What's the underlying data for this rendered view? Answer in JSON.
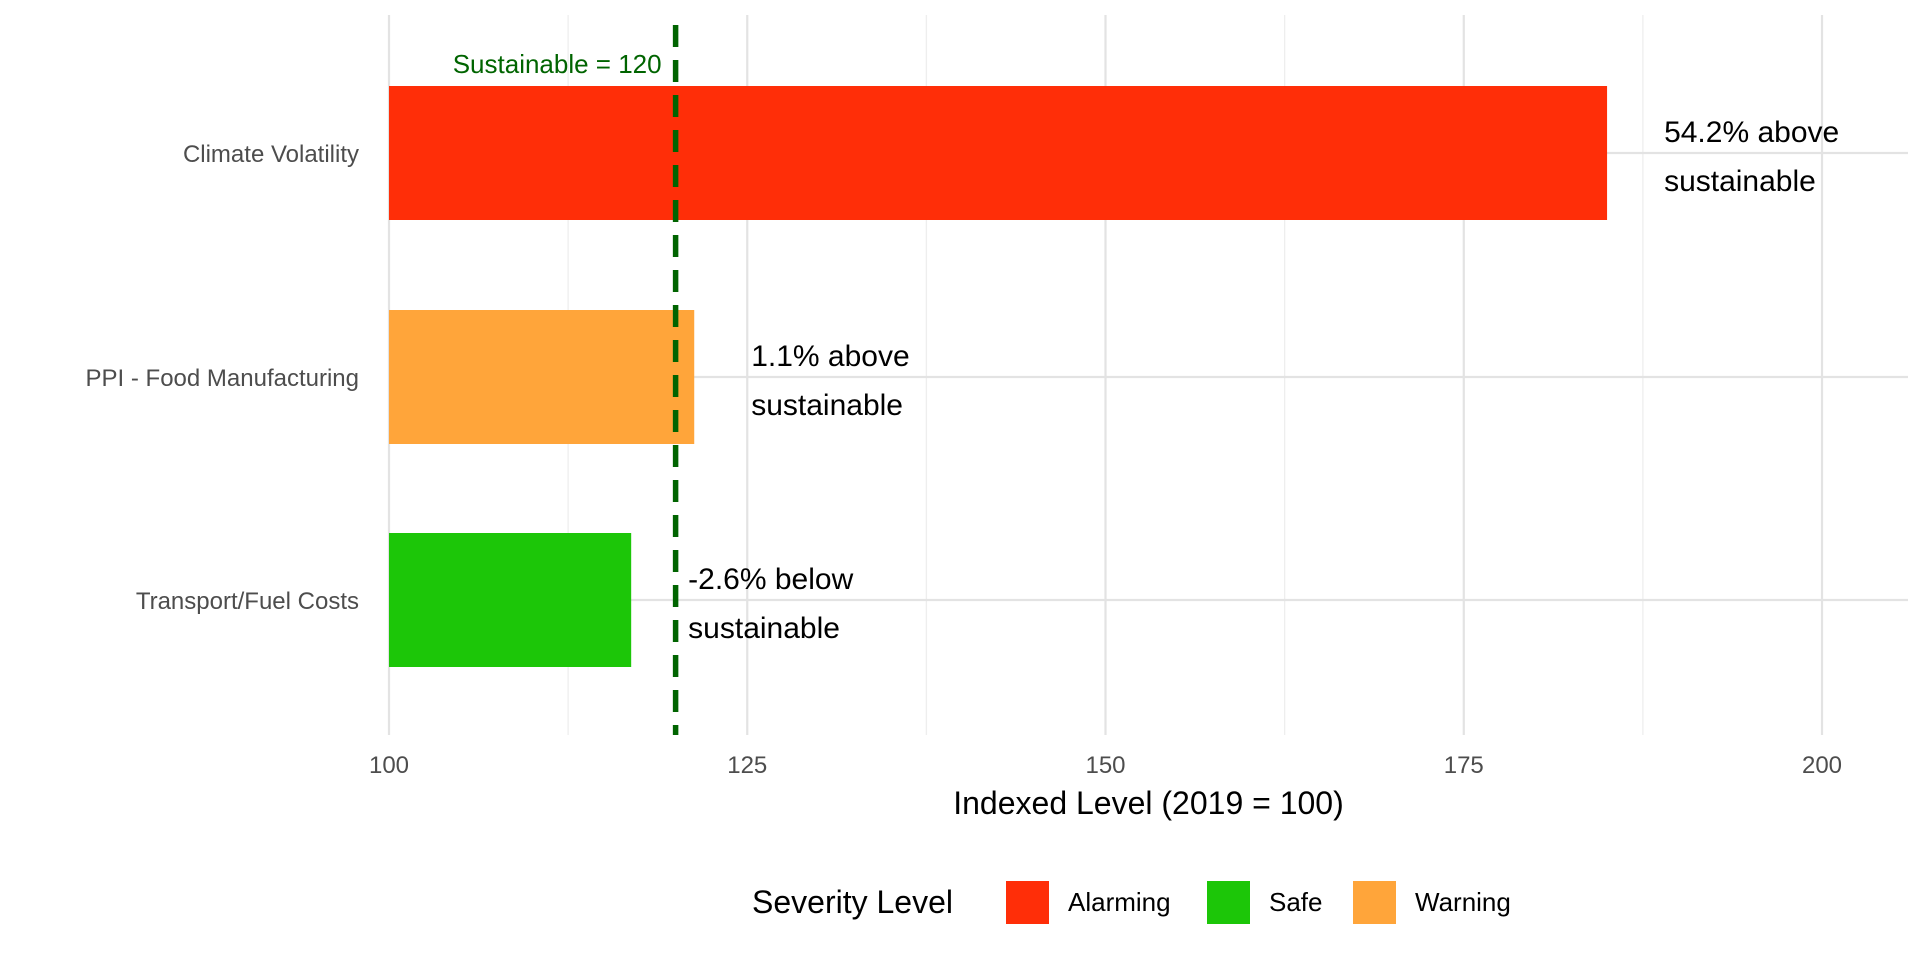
{
  "chart_data": {
    "type": "bar",
    "orientation": "horizontal",
    "categories": [
      "Climate Volatility",
      "PPI - Food Manufacturing",
      "Transport/Fuel Costs"
    ],
    "values": [
      185.0,
      121.3,
      116.9
    ],
    "severity": [
      "Alarming",
      "Warning",
      "Safe"
    ],
    "bar_labels": [
      [
        "54.2% above",
        "sustainable"
      ],
      [
        "1.1% above",
        "sustainable"
      ],
      [
        "-2.6% below",
        "sustainable"
      ]
    ],
    "xlabel": "Indexed Level (2019 = 100)",
    "xlim": [
      100,
      206
    ],
    "xticks": [
      100,
      125,
      150,
      175,
      200
    ],
    "xtick_labels": [
      "100",
      "125",
      "150",
      "175",
      "200"
    ],
    "reference_line": {
      "value": 120,
      "label": "Sustainable = 120",
      "color": "#006400",
      "style": "dashed"
    },
    "grid": true,
    "legend": {
      "title": "Severity Level",
      "placement": "bottom",
      "entries": [
        {
          "label": "Alarming",
          "color": "#FF2E08"
        },
        {
          "label": "Safe",
          "color": "#1CC608"
        },
        {
          "label": "Warning",
          "color": "#FFA53A"
        }
      ]
    }
  }
}
